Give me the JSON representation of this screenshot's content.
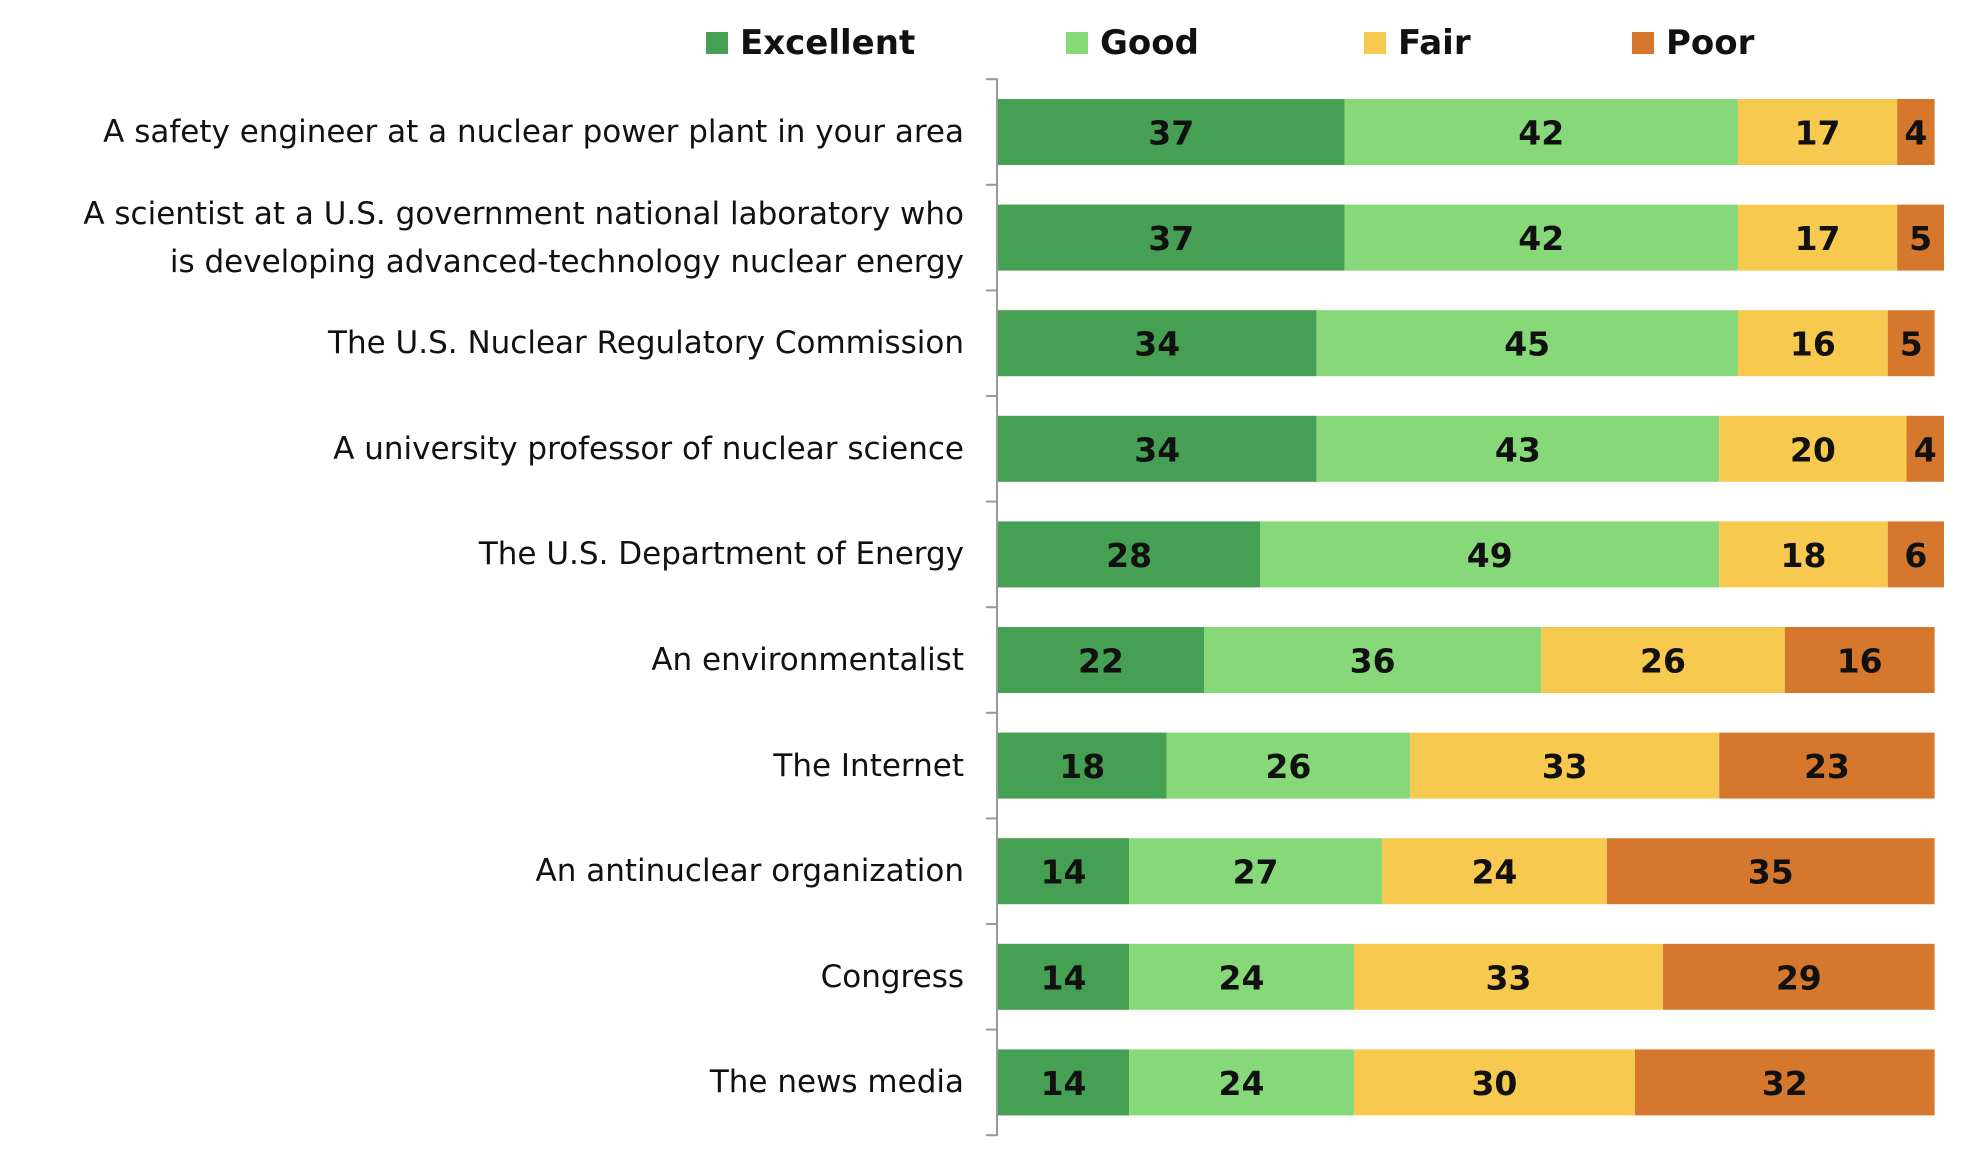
{
  "chart_data": {
    "type": "stacked-bar-horizontal",
    "categories": [
      "A safety engineer at a nuclear power plant in your area",
      "A scientist at a U.S. government national laboratory who\nis developing advanced-technology nuclear energy",
      "The U.S. Nuclear Regulatory Commission",
      "A university professor of nuclear science",
      "The U.S. Department of Energy",
      "An environmentalist",
      "The Internet",
      "An antinuclear organization",
      "Congress",
      "The news media"
    ],
    "series": [
      {
        "name": "Excellent",
        "color": "#45a053",
        "values": [
          37,
          37,
          34,
          34,
          28,
          22,
          18,
          14,
          14,
          14
        ]
      },
      {
        "name": "Good",
        "color": "#86d878",
        "values": [
          42,
          42,
          45,
          43,
          49,
          36,
          26,
          27,
          24,
          24
        ]
      },
      {
        "name": "Fair",
        "color": "#f7ca4f",
        "values": [
          17,
          17,
          16,
          20,
          18,
          26,
          33,
          24,
          33,
          30
        ]
      },
      {
        "name": "Poor",
        "color": "#d5782e",
        "values": [
          4,
          5,
          5,
          4,
          6,
          16,
          23,
          35,
          29,
          32
        ]
      }
    ],
    "xlim": [
      0,
      101
    ],
    "legend": "top"
  }
}
